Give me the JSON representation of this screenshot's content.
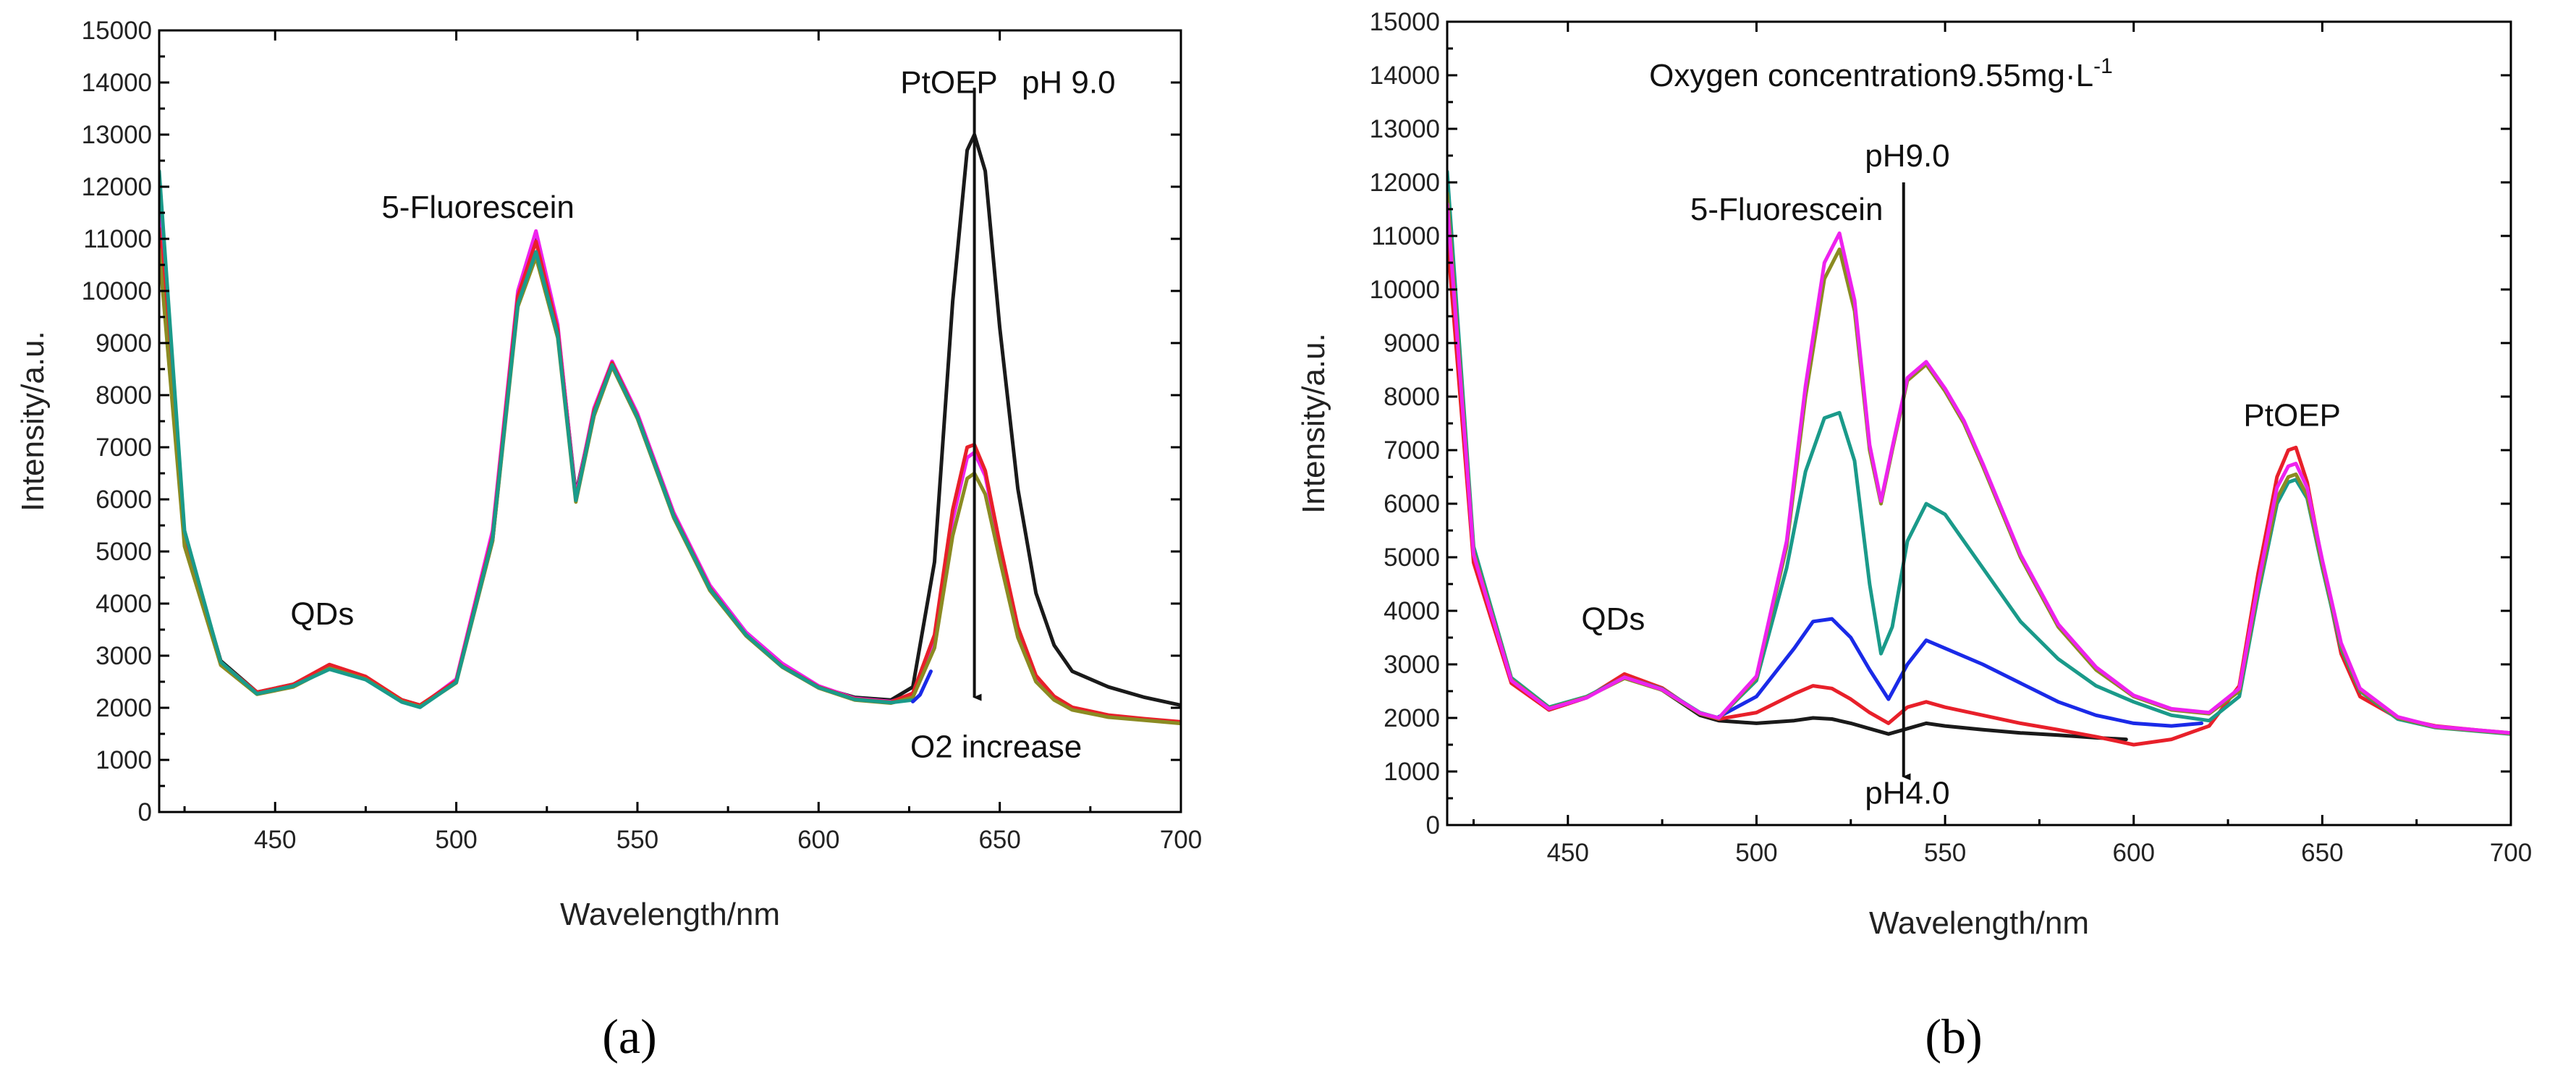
{
  "chart_data": [
    {
      "type": "line",
      "panel_label": "a",
      "title": "",
      "xlabel": "Wavelength/nm",
      "ylabel": "Intensity/a.u.",
      "xlim": [
        418,
        700
      ],
      "ylim": [
        0,
        15000
      ],
      "xticks": [
        450,
        500,
        550,
        600,
        650,
        700
      ],
      "yticks": [
        0,
        1000,
        2000,
        3000,
        4000,
        5000,
        6000,
        7000,
        8000,
        9000,
        10000,
        11000,
        12000,
        13000,
        14000,
        15000
      ],
      "annotations": [
        {
          "text": "PtOEP",
          "x": 636,
          "y": 13800
        },
        {
          "text": "pH 9.0",
          "x": 669,
          "y": 13800
        },
        {
          "text": "5-Fluorescein",
          "x": 506,
          "y": 11400
        },
        {
          "text": "QDs",
          "x": 463,
          "y": 3600
        },
        {
          "text": "O2 increase",
          "x": 649,
          "y": 1050
        }
      ],
      "arrow": {
        "x": 643,
        "y_from": 13900,
        "y_to": 2200
      },
      "series": [
        {
          "name": "black",
          "color": "#1a1a1a",
          "x": [
            418,
            425,
            435,
            445,
            455,
            465,
            475,
            485,
            490,
            500,
            510,
            517,
            522,
            528,
            533,
            538,
            543,
            550,
            560,
            570,
            580,
            590,
            600,
            610,
            620,
            626,
            632,
            637,
            641,
            643,
            646,
            650,
            655,
            660,
            665,
            670,
            680,
            690,
            700
          ],
          "values": [
            12000,
            5300,
            2900,
            2300,
            2450,
            2750,
            2550,
            2150,
            2050,
            2500,
            5200,
            9800,
            11000,
            9300,
            6100,
            7700,
            8600,
            7600,
            5700,
            4300,
            3400,
            2800,
            2400,
            2200,
            2150,
            2400,
            4800,
            9800,
            12700,
            13000,
            12300,
            9300,
            6200,
            4200,
            3200,
            2700,
            2400,
            2200,
            2050
          ]
        },
        {
          "name": "magenta",
          "color": "#ee22ee",
          "x": [
            418,
            425,
            435,
            445,
            455,
            465,
            475,
            485,
            490,
            500,
            510,
            517,
            522,
            528,
            533,
            538,
            543,
            550,
            560,
            570,
            580,
            590,
            600,
            610,
            620,
            626,
            632,
            637,
            641,
            643,
            646,
            650,
            655,
            660,
            665,
            670,
            680,
            690,
            700
          ],
          "values": [
            11600,
            5200,
            2850,
            2280,
            2430,
            2780,
            2570,
            2130,
            2030,
            2550,
            5400,
            10000,
            11150,
            9350,
            6050,
            7750,
            8650,
            7650,
            5750,
            4350,
            3450,
            2850,
            2420,
            2180,
            2120,
            2250,
            3300,
            5600,
            6800,
            6900,
            6450,
            5100,
            3500,
            2600,
            2200,
            2000,
            1850,
            1780,
            1720
          ]
        },
        {
          "name": "red",
          "color": "#e8202a",
          "x": [
            418,
            425,
            435,
            445,
            455,
            465,
            475,
            485,
            490,
            500,
            510,
            517,
            522,
            528,
            533,
            538,
            543,
            550,
            560,
            570,
            580,
            590,
            600,
            610,
            620,
            626,
            632,
            637,
            641,
            643,
            646,
            650,
            655,
            660,
            665,
            670,
            680,
            690,
            700
          ],
          "values": [
            11200,
            5150,
            2870,
            2300,
            2450,
            2830,
            2600,
            2150,
            2050,
            2520,
            5300,
            9900,
            10950,
            9250,
            6000,
            7700,
            8620,
            7600,
            5700,
            4300,
            3400,
            2800,
            2400,
            2170,
            2110,
            2280,
            3400,
            5800,
            7000,
            7050,
            6550,
            5150,
            3550,
            2620,
            2220,
            2010,
            1860,
            1790,
            1730
          ]
        },
        {
          "name": "olive",
          "color": "#8b8b22",
          "x": [
            418,
            425,
            435,
            445,
            455,
            465,
            475,
            485,
            490,
            500,
            510,
            517,
            522,
            528,
            533,
            538,
            543,
            550,
            560,
            570,
            580,
            590,
            600,
            610,
            620,
            626,
            632,
            637,
            641,
            643,
            646,
            650,
            655,
            660,
            665,
            670,
            680,
            690,
            700
          ],
          "values": [
            10800,
            5100,
            2820,
            2260,
            2400,
            2760,
            2550,
            2120,
            2020,
            2480,
            5200,
            9700,
            10650,
            9100,
            5950,
            7600,
            8550,
            7550,
            5650,
            4250,
            3380,
            2780,
            2380,
            2150,
            2090,
            2200,
            3150,
            5300,
            6400,
            6500,
            6100,
            4850,
            3350,
            2500,
            2150,
            1960,
            1820,
            1760,
            1700
          ]
        },
        {
          "name": "teal",
          "color": "#1a9a8a",
          "x": [
            418,
            425,
            435,
            445,
            455,
            465,
            475,
            485,
            490,
            500,
            510,
            517,
            522,
            528,
            533,
            538,
            543,
            550,
            560,
            570,
            580,
            590,
            600,
            610,
            620,
            626
          ],
          "values": [
            12300,
            5400,
            2880,
            2270,
            2420,
            2740,
            2540,
            2110,
            2010,
            2490,
            5250,
            9750,
            10750,
            9150,
            5980,
            7650,
            8580,
            7580,
            5680,
            4280,
            3400,
            2790,
            2390,
            2160,
            2100,
            2150
          ]
        },
        {
          "name": "blue",
          "color": "#1a2ae8",
          "x": [
            626,
            628,
            631
          ],
          "values": [
            2120,
            2250,
            2700
          ]
        }
      ]
    },
    {
      "type": "line",
      "panel_label": "b",
      "title": "",
      "xlabel": "Wavelength/nm",
      "ylabel": "Intensity/a.u.",
      "xlim": [
        418,
        700
      ],
      "ylim": [
        0,
        15000
      ],
      "xticks": [
        450,
        500,
        550,
        600,
        650,
        700
      ],
      "yticks": [
        0,
        1000,
        2000,
        3000,
        4000,
        5000,
        6000,
        7000,
        8000,
        9000,
        10000,
        11000,
        12000,
        13000,
        14000,
        15000
      ],
      "annotations": [
        {
          "text": "Oxygen concentration9.55mg·L",
          "superscript": "-1",
          "x": 533,
          "y": 13800
        },
        {
          "text": "pH9.0",
          "x": 540,
          "y": 12300
        },
        {
          "text": "5-Fluorescein",
          "x": 508,
          "y": 11300
        },
        {
          "text": "PtOEP",
          "x": 642,
          "y": 7450
        },
        {
          "text": "QDs",
          "x": 462,
          "y": 3650
        },
        {
          "text": "pH4.0",
          "x": 540,
          "y": 400
        }
      ],
      "arrow": {
        "x": 539,
        "y_from": 12000,
        "y_to": 900
      },
      "series": [
        {
          "name": "black (pH 4.0)",
          "color": "#1a1a1a",
          "x": [
            418,
            425,
            435,
            445,
            455,
            465,
            475,
            485,
            490,
            500,
            510,
            515,
            520,
            525,
            530,
            535,
            540,
            545,
            550,
            560,
            570,
            580,
            590,
            598
          ],
          "values": [
            11400,
            5000,
            2700,
            2150,
            2380,
            2780,
            2520,
            2050,
            1950,
            1900,
            1950,
            2000,
            1980,
            1900,
            1800,
            1700,
            1800,
            1900,
            1850,
            1780,
            1720,
            1680,
            1630,
            1600
          ]
        },
        {
          "name": "red",
          "color": "#e8202a",
          "x": [
            418,
            425,
            435,
            445,
            455,
            465,
            475,
            485,
            490,
            500,
            510,
            515,
            520,
            525,
            530,
            535,
            540,
            545,
            550,
            560,
            570,
            580,
            590,
            600,
            610,
            620,
            628,
            633,
            638,
            641,
            643,
            646,
            650,
            655,
            660,
            670,
            680,
            690,
            700
          ],
          "values": [
            11000,
            4900,
            2650,
            2150,
            2380,
            2820,
            2560,
            2080,
            1980,
            2100,
            2450,
            2600,
            2550,
            2350,
            2100,
            1900,
            2200,
            2300,
            2200,
            2050,
            1900,
            1780,
            1650,
            1500,
            1600,
            1850,
            2600,
            4700,
            6500,
            7000,
            7050,
            6400,
            4900,
            3200,
            2400,
            2000,
            1850,
            1780,
            1720
          ]
        },
        {
          "name": "blue",
          "color": "#1a2ae8",
          "x": [
            490,
            500,
            510,
            515,
            520,
            525,
            530,
            535,
            540,
            545,
            550,
            560,
            570,
            580,
            590,
            600,
            610,
            618
          ],
          "values": [
            2020,
            2400,
            3300,
            3800,
            3850,
            3500,
            2900,
            2350,
            3000,
            3450,
            3300,
            3000,
            2650,
            2300,
            2050,
            1900,
            1850,
            1900
          ]
        },
        {
          "name": "teal",
          "color": "#1a9a8a",
          "x": [
            418,
            425,
            435,
            445,
            455,
            465,
            475,
            485,
            490,
            500,
            508,
            513,
            518,
            522,
            526,
            530,
            533,
            536,
            540,
            545,
            550,
            555,
            560,
            570,
            580,
            590,
            600,
            610,
            620,
            628,
            633,
            638,
            641,
            643,
            646,
            650,
            655,
            660,
            670,
            680,
            690,
            700
          ],
          "values": [
            12200,
            5200,
            2750,
            2200,
            2400,
            2760,
            2540,
            2100,
            2000,
            2700,
            4800,
            6600,
            7600,
            7700,
            6800,
            4500,
            3200,
            3700,
            5300,
            6000,
            5800,
            5300,
            4800,
            3800,
            3100,
            2600,
            2300,
            2050,
            1950,
            2400,
            4300,
            6000,
            6400,
            6450,
            6100,
            4800,
            3300,
            2500,
            1980,
            1820,
            1760,
            1700
          ]
        },
        {
          "name": "olive (pH 9.0)",
          "color": "#8b8b22",
          "x": [
            418,
            425,
            435,
            445,
            455,
            465,
            475,
            485,
            490,
            500,
            508,
            513,
            518,
            522,
            526,
            530,
            533,
            536,
            540,
            545,
            550,
            555,
            560,
            570,
            580,
            590,
            600,
            610,
            620,
            628,
            633,
            638,
            641,
            643,
            646,
            650,
            655,
            660,
            670,
            680,
            690,
            700
          ],
          "values": [
            11800,
            5100,
            2720,
            2180,
            2390,
            2740,
            2520,
            2080,
            1990,
            2750,
            5200,
            8000,
            10200,
            10750,
            9600,
            7000,
            6000,
            7000,
            8300,
            8600,
            8100,
            7500,
            6700,
            5000,
            3700,
            2900,
            2400,
            2150,
            2080,
            2500,
            4400,
            6100,
            6500,
            6550,
            6150,
            4850,
            3350,
            2520,
            2000,
            1830,
            1770,
            1710
          ]
        },
        {
          "name": "magenta",
          "color": "#ee22ee",
          "x": [
            418,
            425,
            435,
            445,
            455,
            465,
            475,
            485,
            490,
            500,
            508,
            513,
            518,
            522,
            526,
            530,
            533,
            536,
            540,
            545,
            550,
            555,
            560,
            570,
            580,
            590,
            600,
            610,
            620,
            628,
            633,
            638,
            641,
            643,
            646,
            650,
            655,
            660,
            670,
            680,
            690,
            700
          ],
          "values": [
            11600,
            5050,
            2700,
            2170,
            2380,
            2760,
            2530,
            2090,
            2000,
            2780,
            5300,
            8200,
            10500,
            11050,
            9800,
            7100,
            6050,
            7050,
            8350,
            8650,
            8150,
            7550,
            6750,
            5050,
            3750,
            2950,
            2420,
            2170,
            2100,
            2550,
            4500,
            6300,
            6700,
            6750,
            6300,
            4950,
            3400,
            2550,
            2020,
            1840,
            1780,
            1720
          ]
        }
      ]
    }
  ],
  "captions": {
    "a": "(a)",
    "b": "(b)"
  }
}
